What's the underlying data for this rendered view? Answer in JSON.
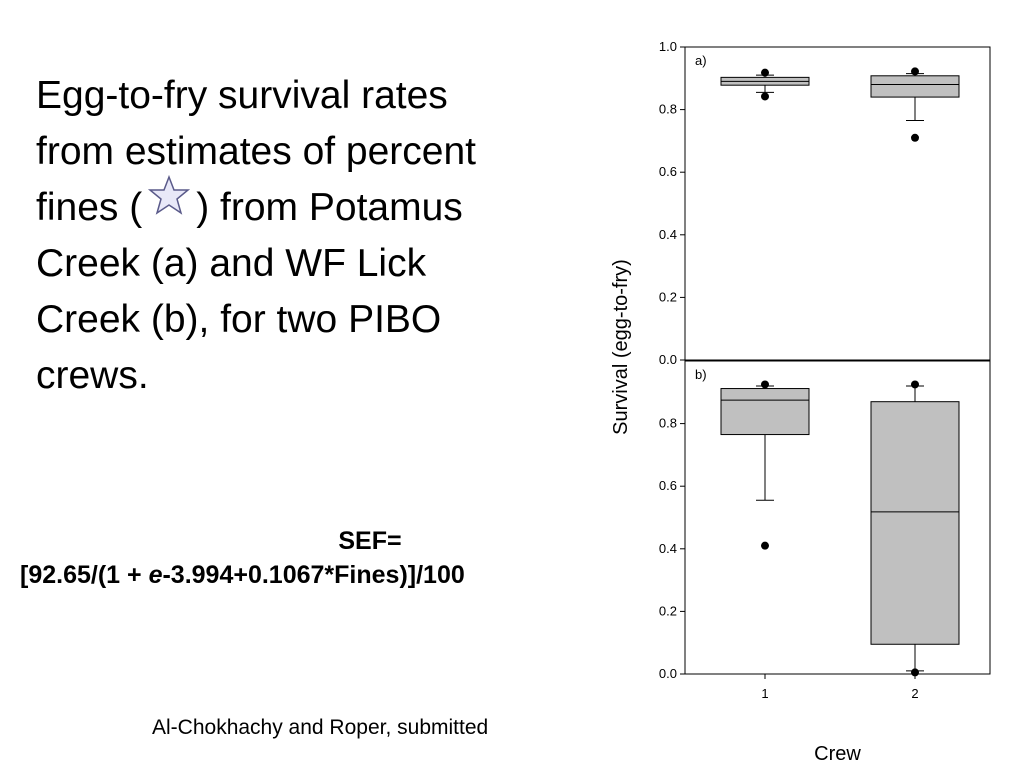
{
  "caption": {
    "part1": "Egg-to-fry survival rates from estimates of percent fines (",
    "part2": ") from Potamus Creek (a) and WF Lick Creek (b), for two PIBO crews."
  },
  "star_icon": {
    "name": "star-icon",
    "fill": "#e8e8f8",
    "stroke": "#5a5a8a"
  },
  "equation": {
    "label": "SEF=",
    "formula_prefix": "[92.65/(1 + ",
    "formula_e": "e",
    "formula_suffix": "-3.994+0.1067*Fines)]/100"
  },
  "citation": "Al-Chokhachy and Roper, submitted",
  "chart_data": {
    "type": "box",
    "xlabel": "Crew",
    "ylabel": "Survival (egg-to-fry)",
    "categories": [
      "1",
      "2"
    ],
    "ylim": [
      0.0,
      1.0
    ],
    "yticks": [
      "0.0",
      "0.2",
      "0.4",
      "0.6",
      "0.8",
      "1.0"
    ],
    "box_color": "#c0c0c0",
    "panels": [
      {
        "label": "a)",
        "boxes": [
          {
            "crew": "1",
            "whisker_low": 0.855,
            "q1": 0.878,
            "median": 0.89,
            "q3": 0.903,
            "whisker_high": 0.91,
            "outliers": [
              0.918,
              0.842
            ]
          },
          {
            "crew": "2",
            "whisker_low": 0.765,
            "q1": 0.84,
            "median": 0.88,
            "q3": 0.908,
            "whisker_high": 0.915,
            "outliers": [
              0.922,
              0.71
            ]
          }
        ]
      },
      {
        "label": "b)",
        "boxes": [
          {
            "crew": "1",
            "whisker_low": 0.555,
            "q1": 0.765,
            "median": 0.875,
            "q3": 0.912,
            "whisker_high": 0.92,
            "outliers": [
              0.925,
              0.41
            ]
          },
          {
            "crew": "2",
            "whisker_low": 0.01,
            "q1": 0.095,
            "median": 0.518,
            "q3": 0.87,
            "whisker_high": 0.92,
            "outliers": [
              0.925,
              0.005
            ]
          }
        ]
      }
    ]
  }
}
